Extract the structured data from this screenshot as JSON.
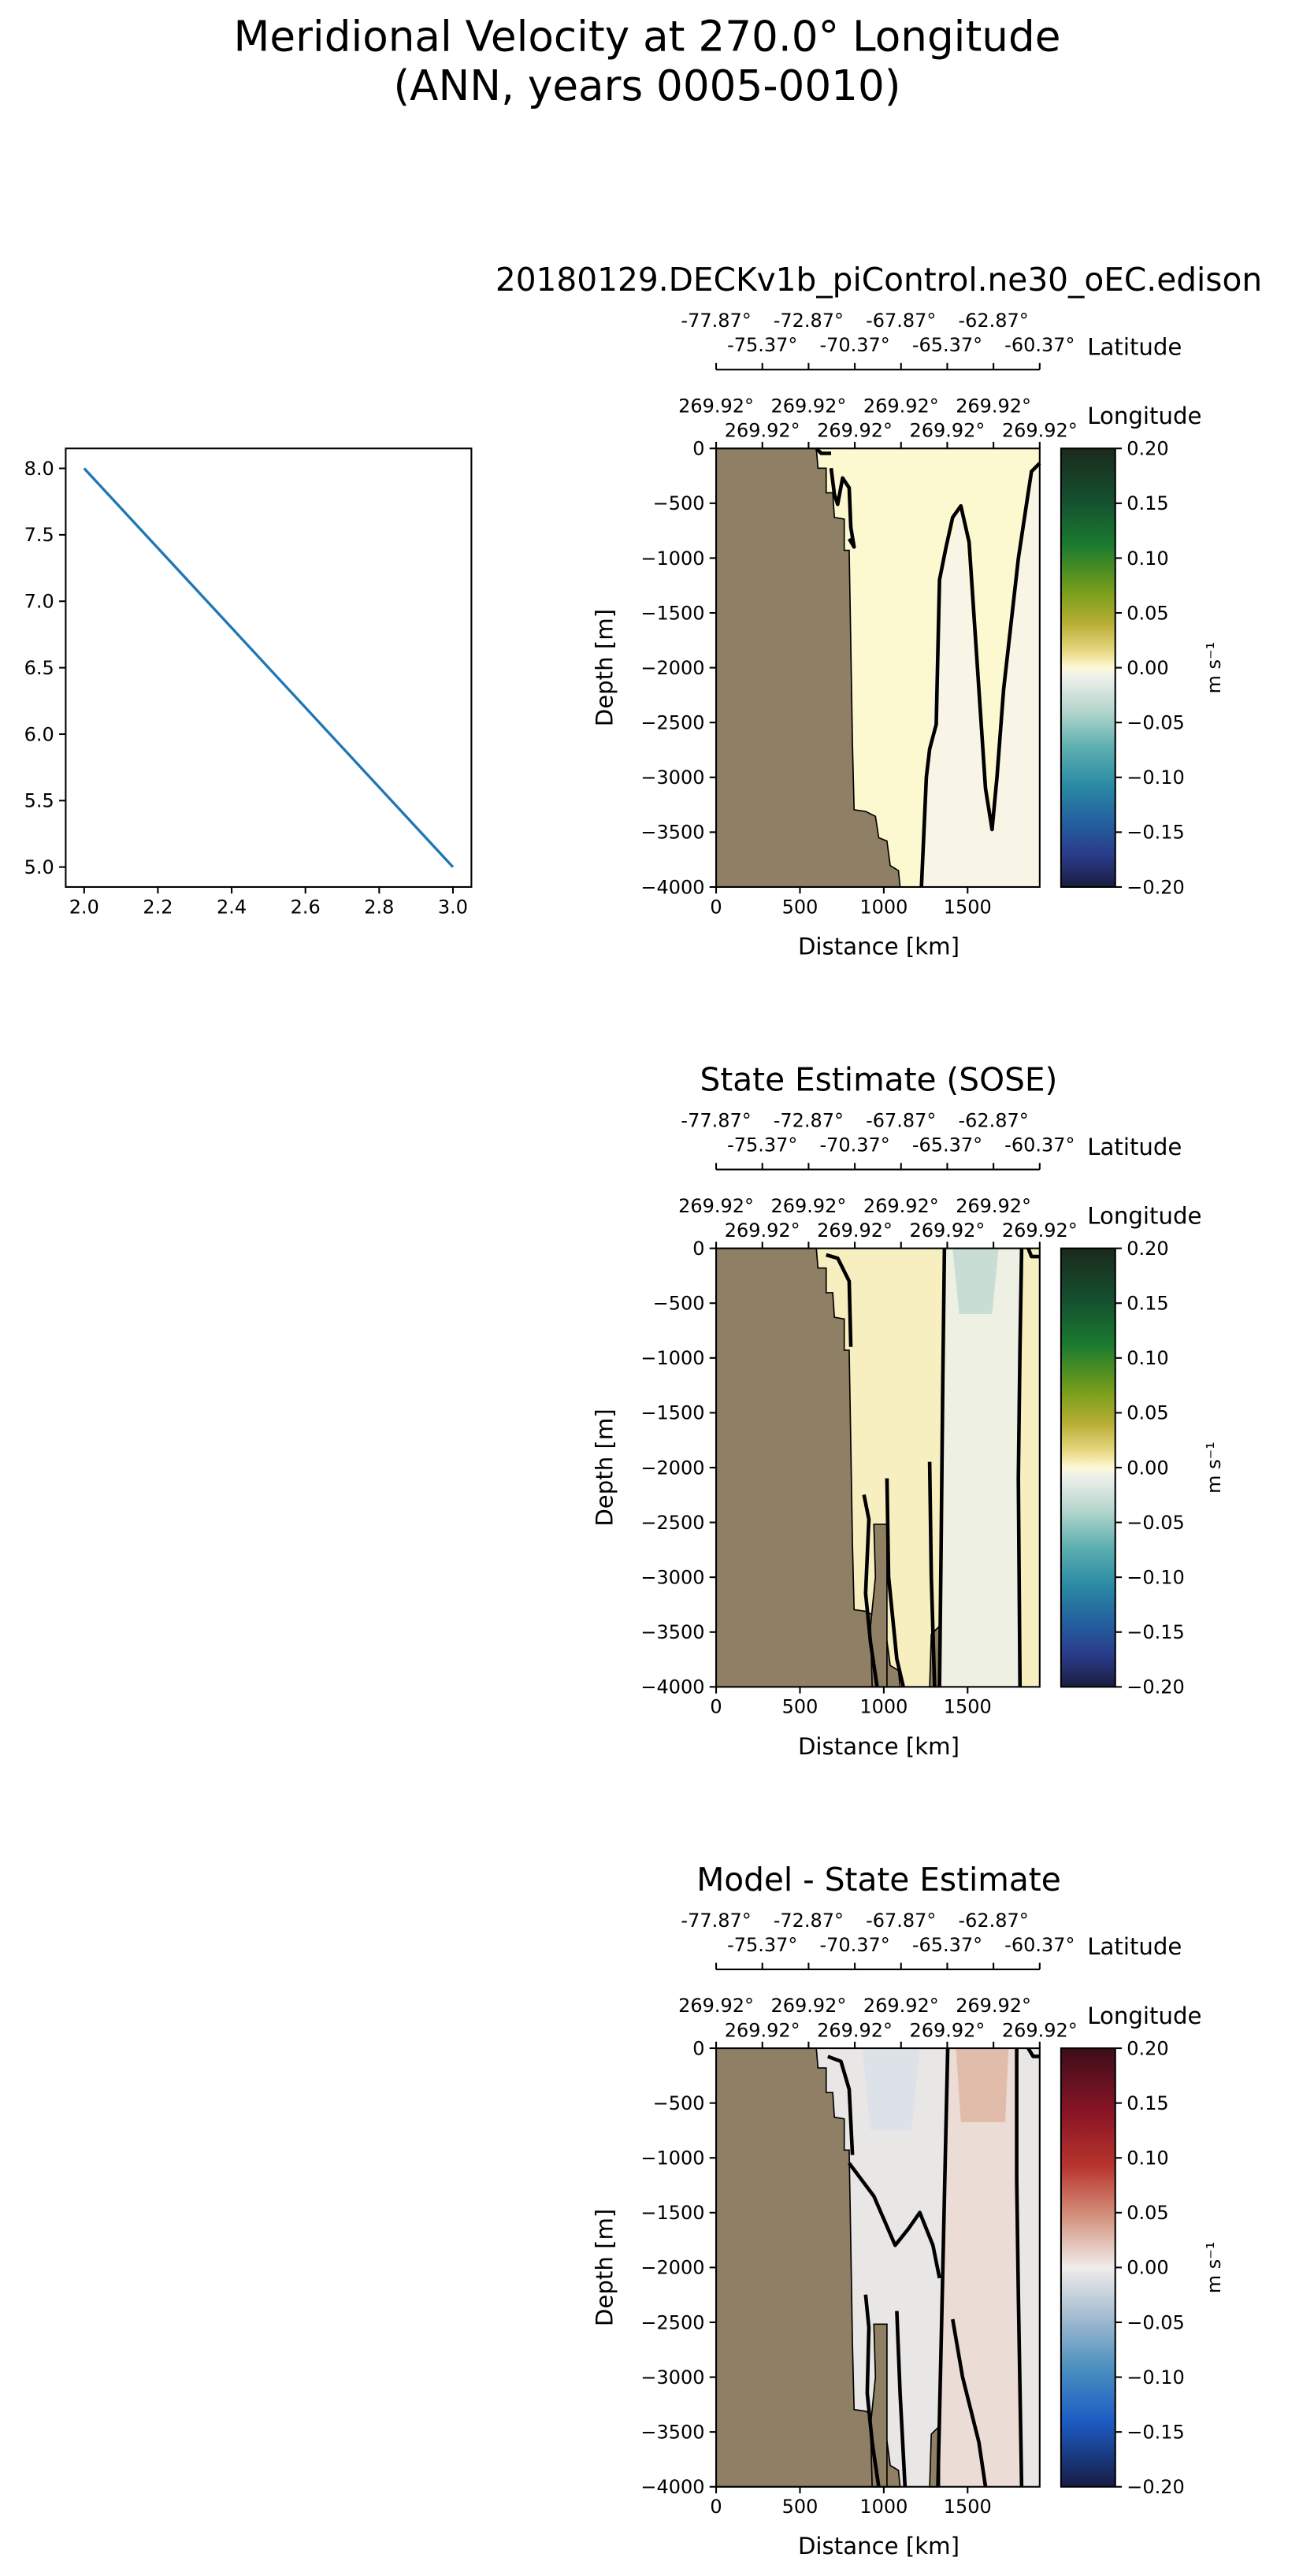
{
  "chart_data": {
    "type": "heatmap",
    "title": [
      "Meridional Velocity at 270.0° Longitude",
      "(ANN, years 0005-0010)"
    ],
    "line_plot": {
      "type": "line",
      "x": [
        2.0,
        3.0
      ],
      "y": [
        8.0,
        5.0
      ],
      "xlim": [
        1.95,
        3.05
      ],
      "ylim": [
        4.85,
        8.15
      ],
      "xticks": [
        "2.0",
        "2.2",
        "2.4",
        "2.6",
        "2.8",
        "3.0"
      ],
      "yticks": [
        "5.0",
        "5.5",
        "6.0",
        "6.5",
        "7.0",
        "7.5",
        "8.0"
      ],
      "color": "#1f77b4"
    },
    "panels": [
      {
        "title": "20180129.DECKv1b_piControl.ne30_oEC.edison",
        "colormap": "delta",
        "land_color": "#8f7f64"
      },
      {
        "title": "State Estimate (SOSE)",
        "colormap": "delta",
        "land_color": "#8f7f64"
      },
      {
        "title": "Model - State Estimate",
        "colormap": "balance",
        "land_color": "#8f7f64"
      }
    ],
    "shared_axes": {
      "xlabel": "Distance [km]",
      "ylabel": "Depth [m]",
      "xlim": [
        0,
        1930
      ],
      "ylim": [
        -4000,
        0
      ],
      "xticks": [
        "0",
        "500",
        "1000",
        "1500"
      ],
      "yticks": [
        "0",
        "−500",
        "−1000",
        "−1500",
        "−2000",
        "−2500",
        "−3000",
        "−3500",
        "−4000"
      ],
      "lat_label": "Latitude",
      "lat_ticks": [
        "-77.87°",
        "-75.37°",
        "-72.87°",
        "-70.37°",
        "-67.87°",
        "-65.37°",
        "-62.87°",
        "-60.37°"
      ],
      "lon_label": "Longitude",
      "lon_ticks": [
        "269.92°",
        "269.92°",
        "269.92°",
        "269.92°",
        "269.92°",
        "269.92°",
        "269.92°",
        "269.92°"
      ],
      "colorbar_ticks": [
        "0.20",
        "0.15",
        "0.10",
        "0.05",
        "0.00",
        "−0.05",
        "−0.10",
        "−0.15",
        "−0.20"
      ],
      "colorbar_range": [
        -0.2,
        0.2
      ],
      "colorbar_label": "m s⁻¹"
    }
  }
}
